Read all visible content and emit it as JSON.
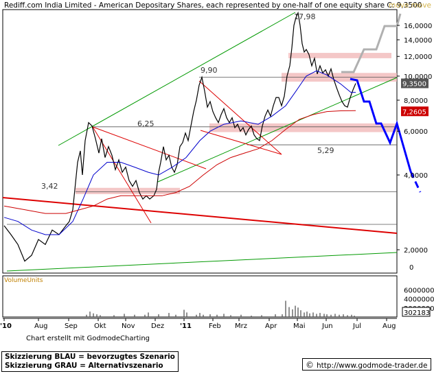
{
  "title": "Rediff.com India Limited - American Depositary Shares, each represented by one-half of one equity share C: 9,3500",
  "watermark": "move move",
  "price_axis_ticks": [
    "16,0000",
    "14,0000",
    "12,0000",
    "10,0000",
    "8,0000",
    "6,0000",
    "4,0000",
    "2,0000",
    "0"
  ],
  "volume_axis_ticks": [
    "6000000",
    "4000000",
    "2000000"
  ],
  "volume_label": "VolumeUnits",
  "volume_value": "302183",
  "x_ticks": [
    "'10",
    "Aug",
    "Sep",
    "Okt",
    "Nov",
    "Dez",
    "'11",
    "Feb",
    "Mrz",
    "Apr",
    "Mai",
    "Jun",
    "Jul",
    "Aug"
  ],
  "annotations": [
    "3,42",
    "6,25",
    "9,90",
    "17,98",
    "5,29"
  ],
  "price_badges": {
    "last": "9,3500",
    "ma": "7,2605"
  },
  "credit": "Chart erstellt mit GodmodeCharting",
  "legend": [
    "Skizzierung BLAU = bevorzugtes Szenario",
    "Skizzierung GRAU = Alternativszenario"
  ],
  "source": "http://www.godmode-trader.de",
  "colors": {
    "price": "#000000",
    "ma_fast": "#0000cc",
    "ma_slow": "#cc0000",
    "trend": "#009900",
    "scenario_blue": "#0000ff",
    "scenario_gray": "#b0b0b0",
    "zone": "#f0b4b4",
    "volume": "#555555"
  },
  "chart_data": {
    "type": "line",
    "y_scale": "log",
    "ylim": [
      1.4,
      20
    ],
    "series": [
      {
        "values": [
          [
            0,
            2.5
          ],
          [
            10,
            2.3
          ],
          [
            20,
            2.1
          ],
          [
            30,
            1.8
          ],
          [
            40,
            1.9
          ],
          [
            50,
            2.2
          ],
          [
            60,
            2.1
          ],
          [
            70,
            2.4
          ],
          [
            80,
            2.3
          ],
          [
            90,
            2.5
          ],
          [
            95,
            2.6
          ],
          [
            100,
            2.9
          ],
          [
            103,
            3.5
          ],
          [
            107,
            4.5
          ],
          [
            111,
            5.0
          ],
          [
            114,
            4.0
          ],
          [
            118,
            5.5
          ],
          [
            123,
            6.5
          ],
          [
            128,
            6.3
          ],
          [
            133,
            5.6
          ],
          [
            138,
            4.9
          ],
          [
            142,
            5.6
          ],
          [
            147,
            4.7
          ],
          [
            152,
            5.2
          ],
          [
            157,
            4.8
          ],
          [
            162,
            4.2
          ],
          [
            167,
            4.6
          ],
          [
            172,
            4.1
          ],
          [
            177,
            4.3
          ],
          [
            182,
            3.8
          ],
          [
            187,
            3.6
          ],
          [
            192,
            3.8
          ],
          [
            197,
            3.4
          ],
          [
            202,
            3.2
          ],
          [
            207,
            3.3
          ],
          [
            212,
            3.2
          ],
          [
            218,
            3.3
          ],
          [
            222,
            3.5
          ],
          [
            225,
            4.1
          ],
          [
            228,
            4.5
          ],
          [
            232,
            5.2
          ],
          [
            236,
            4.6
          ],
          [
            240,
            4.8
          ],
          [
            244,
            4.3
          ],
          [
            248,
            4.1
          ],
          [
            252,
            4.4
          ],
          [
            256,
            5.2
          ],
          [
            260,
            5.4
          ],
          [
            264,
            5.9
          ],
          [
            268,
            5.5
          ],
          [
            272,
            6.3
          ],
          [
            276,
            7.2
          ],
          [
            280,
            8.0
          ],
          [
            284,
            9.2
          ],
          [
            288,
            9.9
          ],
          [
            292,
            8.7
          ],
          [
            296,
            7.5
          ],
          [
            300,
            7.9
          ],
          [
            304,
            7.2
          ],
          [
            308,
            6.8
          ],
          [
            312,
            6.5
          ],
          [
            316,
            7.0
          ],
          [
            320,
            7.4
          ],
          [
            324,
            6.8
          ],
          [
            328,
            6.5
          ],
          [
            332,
            6.8
          ],
          [
            336,
            6.2
          ],
          [
            340,
            6.4
          ],
          [
            344,
            6.0
          ],
          [
            348,
            6.2
          ],
          [
            352,
            5.8
          ],
          [
            356,
            6.1
          ],
          [
            360,
            6.3
          ],
          [
            364,
            5.8
          ],
          [
            368,
            5.6
          ],
          [
            372,
            5.5
          ],
          [
            376,
            6.3
          ],
          [
            380,
            6.9
          ],
          [
            384,
            7.3
          ],
          [
            388,
            6.9
          ],
          [
            392,
            7.6
          ],
          [
            396,
            8.2
          ],
          [
            400,
            8.2
          ],
          [
            404,
            7.6
          ],
          [
            408,
            8.3
          ],
          [
            412,
            10.0
          ],
          [
            416,
            11.0
          ],
          [
            419,
            13.0
          ],
          [
            422,
            16.0
          ],
          [
            425,
            17.2
          ],
          [
            428,
            17.98
          ],
          [
            431,
            16.0
          ],
          [
            434,
            13.5
          ],
          [
            437,
            12.5
          ],
          [
            440,
            12.8
          ],
          [
            444,
            12.2
          ],
          [
            448,
            11.0
          ],
          [
            452,
            11.8
          ],
          [
            456,
            10.2
          ],
          [
            460,
            11.0
          ],
          [
            464,
            10.3
          ],
          [
            468,
            10.6
          ],
          [
            472,
            10.0
          ],
          [
            476,
            10.7
          ],
          [
            480,
            9.7
          ],
          [
            484,
            9.0
          ],
          [
            488,
            8.4
          ],
          [
            492,
            7.9
          ],
          [
            496,
            7.6
          ],
          [
            500,
            7.5
          ],
          [
            504,
            8.2
          ],
          [
            508,
            8.8
          ],
          [
            512,
            9.35
          ]
        ]
      },
      {
        "values": [
          [
            0,
            2.7
          ],
          [
            20,
            2.6
          ],
          [
            40,
            2.4
          ],
          [
            60,
            2.3
          ],
          [
            80,
            2.3
          ],
          [
            100,
            2.6
          ],
          [
            115,
            3.2
          ],
          [
            130,
            4.0
          ],
          [
            150,
            4.5
          ],
          [
            170,
            4.5
          ],
          [
            190,
            4.3
          ],
          [
            210,
            4.1
          ],
          [
            225,
            4.0
          ],
          [
            245,
            4.3
          ],
          [
            265,
            4.7
          ],
          [
            285,
            5.5
          ],
          [
            300,
            6.0
          ],
          [
            320,
            6.4
          ],
          [
            345,
            6.6
          ],
          [
            370,
            6.4
          ],
          [
            390,
            6.9
          ],
          [
            410,
            7.6
          ],
          [
            425,
            8.7
          ],
          [
            440,
            10.0
          ],
          [
            455,
            10.5
          ],
          [
            470,
            10.1
          ],
          [
            490,
            9.3
          ],
          [
            505,
            8.6
          ],
          [
            512,
            8.6
          ]
        ]
      },
      {
        "values": [
          [
            0,
            3.0
          ],
          [
            30,
            2.9
          ],
          [
            60,
            2.8
          ],
          [
            90,
            2.8
          ],
          [
            110,
            2.9
          ],
          [
            130,
            3.0
          ],
          [
            150,
            3.2
          ],
          [
            170,
            3.3
          ],
          [
            190,
            3.3
          ],
          [
            210,
            3.3
          ],
          [
            230,
            3.3
          ],
          [
            250,
            3.4
          ],
          [
            270,
            3.6
          ],
          [
            290,
            4.0
          ],
          [
            310,
            4.4
          ],
          [
            330,
            4.7
          ],
          [
            350,
            4.9
          ],
          [
            370,
            5.1
          ],
          [
            390,
            5.5
          ],
          [
            410,
            6.1
          ],
          [
            430,
            6.7
          ],
          [
            450,
            7.0
          ],
          [
            470,
            7.2
          ],
          [
            490,
            7.25
          ],
          [
            512,
            7.26
          ]
        ]
      }
    ],
    "volume": [
      [
        120,
        0.5
      ],
      [
        125,
        1.2
      ],
      [
        130,
        0.8
      ],
      [
        135,
        0.6
      ],
      [
        140,
        0.4
      ],
      [
        160,
        0.4
      ],
      [
        175,
        0.7
      ],
      [
        190,
        0.5
      ],
      [
        205,
        0.5
      ],
      [
        210,
        1.0
      ],
      [
        225,
        0.6
      ],
      [
        240,
        0.9
      ],
      [
        250,
        0.5
      ],
      [
        262,
        1.6
      ],
      [
        266,
        1.0
      ],
      [
        280,
        0.5
      ],
      [
        285,
        0.9
      ],
      [
        290,
        0.5
      ],
      [
        300,
        0.6
      ],
      [
        310,
        0.5
      ],
      [
        320,
        0.7
      ],
      [
        330,
        0.4
      ],
      [
        345,
        0.5
      ],
      [
        360,
        0.3
      ],
      [
        375,
        0.4
      ],
      [
        395,
        0.6
      ],
      [
        405,
        0.6
      ],
      [
        410,
        3.6
      ],
      [
        415,
        2.2
      ],
      [
        420,
        1.7
      ],
      [
        424,
        2.5
      ],
      [
        428,
        2.1
      ],
      [
        432,
        1.5
      ],
      [
        437,
        1.0
      ],
      [
        441,
        1.2
      ],
      [
        445,
        0.8
      ],
      [
        450,
        1.0
      ],
      [
        455,
        0.7
      ],
      [
        460,
        0.9
      ],
      [
        466,
        0.7
      ],
      [
        470,
        0.6
      ],
      [
        476,
        0.5
      ],
      [
        482,
        0.7
      ],
      [
        488,
        0.5
      ],
      [
        494,
        0.6
      ],
      [
        500,
        0.4
      ],
      [
        506,
        0.5
      ],
      [
        510,
        0.3
      ]
    ]
  }
}
